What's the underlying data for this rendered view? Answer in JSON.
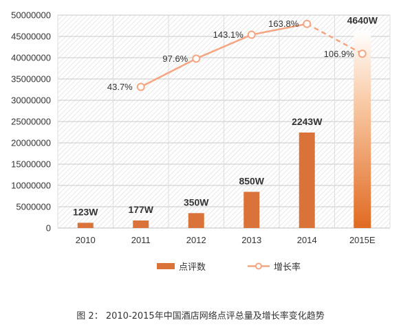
{
  "chart_data": {
    "type": "bar",
    "categories": [
      "2010",
      "2011",
      "2012",
      "2013",
      "2014",
      "2015E"
    ],
    "series": [
      {
        "name": "点评数",
        "type": "bar",
        "values": [
          1230000,
          1770000,
          3500000,
          8500000,
          22430000,
          46400000
        ],
        "labels": [
          "123W",
          "177W",
          "350W",
          "850W",
          "2243W",
          "4640W"
        ],
        "color": "#D9733A"
      },
      {
        "name": "增长率",
        "type": "line",
        "axis": "secondary",
        "values": [
          null,
          43.7,
          97.6,
          143.1,
          163.8,
          106.9
        ],
        "labels": [
          "",
          "43.7%",
          "97.6%",
          "143.1%",
          "163.8%",
          "106.9%"
        ],
        "color": "#F4A582"
      }
    ],
    "ylim": [
      0,
      50000000
    ],
    "yticks": [
      "0",
      "5000000",
      "10000000",
      "15000000",
      "20000000",
      "25000000",
      "30000000",
      "35000000",
      "40000000",
      "45000000",
      "50000000"
    ],
    "grid": true,
    "legend_position": "bottom"
  },
  "caption": "图 2： 2010-2015年中国酒店网络点评总量及增长率变化趋势"
}
